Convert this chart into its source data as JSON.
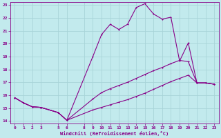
{
  "xlabel": "Windchill (Refroidissement éolien,°C)",
  "bg_color": "#c2eaed",
  "grid_color": "#a8d4d8",
  "line_color": "#880088",
  "xlim": [
    -0.5,
    23.5
  ],
  "ylim": [
    13.8,
    23.2
  ],
  "xticks": [
    0,
    1,
    2,
    3,
    5,
    6,
    8,
    9,
    10,
    11,
    12,
    13,
    14,
    15,
    16,
    17,
    18,
    19,
    20,
    21,
    22,
    23
  ],
  "yticks": [
    14,
    15,
    16,
    17,
    18,
    19,
    20,
    21,
    22,
    23
  ],
  "line1_x": [
    0,
    1,
    2,
    3,
    5,
    6,
    9,
    10,
    11,
    12,
    13,
    14,
    15,
    16,
    17,
    18,
    19,
    20,
    21,
    22,
    23
  ],
  "line1_y": [
    15.8,
    15.4,
    15.1,
    15.05,
    14.65,
    14.05,
    14.85,
    15.05,
    15.25,
    15.45,
    15.65,
    15.9,
    16.15,
    16.45,
    16.75,
    17.05,
    17.3,
    17.55,
    16.95,
    16.95,
    16.85
  ],
  "line2_x": [
    0,
    1,
    2,
    3,
    5,
    6,
    9,
    10,
    11,
    12,
    13,
    14,
    15,
    16,
    17,
    18,
    19,
    20,
    21,
    22,
    23
  ],
  "line2_y": [
    15.8,
    15.4,
    15.1,
    15.05,
    14.65,
    14.05,
    19.0,
    20.7,
    21.5,
    21.1,
    21.5,
    22.8,
    23.1,
    22.3,
    21.9,
    22.05,
    18.65,
    20.05,
    16.95,
    16.95,
    16.85
  ],
  "line3_x": [
    0,
    1,
    2,
    3,
    5,
    6,
    9,
    10,
    11,
    12,
    13,
    14,
    15,
    16,
    17,
    18,
    19,
    20,
    21,
    22,
    23
  ],
  "line3_y": [
    15.8,
    15.4,
    15.1,
    15.05,
    14.65,
    14.05,
    15.7,
    16.2,
    16.5,
    16.75,
    17.0,
    17.3,
    17.6,
    17.9,
    18.15,
    18.45,
    18.7,
    18.6,
    16.95,
    16.95,
    16.85
  ]
}
